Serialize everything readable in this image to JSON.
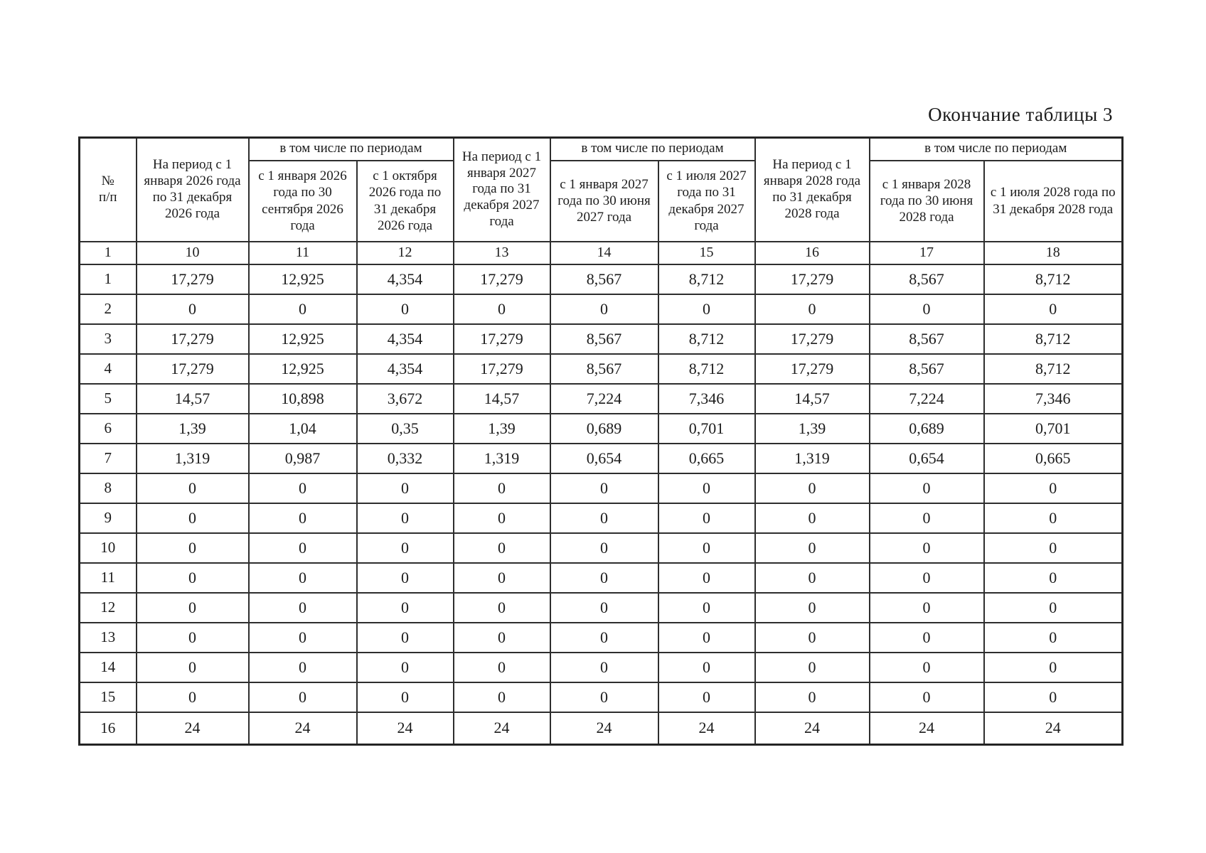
{
  "page": {
    "title": "Окончание таблицы 3"
  },
  "colors": {
    "paper": "#ffffff",
    "ink": "#1c1c1c",
    "line": "#2e2e2e"
  },
  "table": {
    "header": {
      "number_sign": "№",
      "number_sub": "п/п",
      "groups": [
        {
          "period_label": "На период с 1 января 2026 года по 31 декабря 2026 года",
          "including_label": "в том числе по периодам",
          "sub_periods": [
            "с 1 января 2026 года по 30 сентября 2026 года",
            "с 1 октября 2026 года по 31 декабря 2026 года"
          ]
        },
        {
          "period_label": "На период с 1 января 2027 года по 31 декабря 2027 года",
          "including_label": "в том числе по периодам",
          "sub_periods": [
            "с 1 января 2027 года по 30 июня 2027 года",
            "с 1 июля 2027 года по 31 декабря 2027 года"
          ]
        },
        {
          "period_label": "На период с 1 января 2028 года по 31 декабря 2028 года",
          "including_label": "в том числе по периодам",
          "sub_periods": [
            "с 1 января 2028 года по 30 июня 2028 года",
            "с 1 июля 2028 года по 31 декабря 2028 года"
          ]
        }
      ],
      "column_numbers": [
        "1",
        "10",
        "11",
        "12",
        "13",
        "14",
        "15",
        "16",
        "17",
        "18"
      ]
    },
    "rows": [
      {
        "num": "1",
        "values": [
          "17,279",
          "12,925",
          "4,354",
          "17,279",
          "8,567",
          "8,712",
          "17,279",
          "8,567",
          "8,712"
        ]
      },
      {
        "num": "2",
        "values": [
          "0",
          "0",
          "0",
          "0",
          "0",
          "0",
          "0",
          "0",
          "0"
        ]
      },
      {
        "num": "3",
        "values": [
          "17,279",
          "12,925",
          "4,354",
          "17,279",
          "8,567",
          "8,712",
          "17,279",
          "8,567",
          "8,712"
        ]
      },
      {
        "num": "4",
        "values": [
          "17,279",
          "12,925",
          "4,354",
          "17,279",
          "8,567",
          "8,712",
          "17,279",
          "8,567",
          "8,712"
        ]
      },
      {
        "num": "5",
        "values": [
          "14,57",
          "10,898",
          "3,672",
          "14,57",
          "7,224",
          "7,346",
          "14,57",
          "7,224",
          "7,346"
        ]
      },
      {
        "num": "6",
        "values": [
          "1,39",
          "1,04",
          "0,35",
          "1,39",
          "0,689",
          "0,701",
          "1,39",
          "0,689",
          "0,701"
        ]
      },
      {
        "num": "7",
        "values": [
          "1,319",
          "0,987",
          "0,332",
          "1,319",
          "0,654",
          "0,665",
          "1,319",
          "0,654",
          "0,665"
        ]
      },
      {
        "num": "8",
        "values": [
          "0",
          "0",
          "0",
          "0",
          "0",
          "0",
          "0",
          "0",
          "0"
        ]
      },
      {
        "num": "9",
        "values": [
          "0",
          "0",
          "0",
          "0",
          "0",
          "0",
          "0",
          "0",
          "0"
        ]
      },
      {
        "num": "10",
        "values": [
          "0",
          "0",
          "0",
          "0",
          "0",
          "0",
          "0",
          "0",
          "0"
        ]
      },
      {
        "num": "11",
        "values": [
          "0",
          "0",
          "0",
          "0",
          "0",
          "0",
          "0",
          "0",
          "0"
        ]
      },
      {
        "num": "12",
        "values": [
          "0",
          "0",
          "0",
          "0",
          "0",
          "0",
          "0",
          "0",
          "0"
        ]
      },
      {
        "num": "13",
        "values": [
          "0",
          "0",
          "0",
          "0",
          "0",
          "0",
          "0",
          "0",
          "0"
        ]
      },
      {
        "num": "14",
        "values": [
          "0",
          "0",
          "0",
          "0",
          "0",
          "0",
          "0",
          "0",
          "0"
        ]
      },
      {
        "num": "15",
        "values": [
          "0",
          "0",
          "0",
          "0",
          "0",
          "0",
          "0",
          "0",
          "0"
        ]
      },
      {
        "num": "16",
        "values": [
          "24",
          "24",
          "24",
          "24",
          "24",
          "24",
          "24",
          "24",
          "24"
        ]
      }
    ]
  }
}
